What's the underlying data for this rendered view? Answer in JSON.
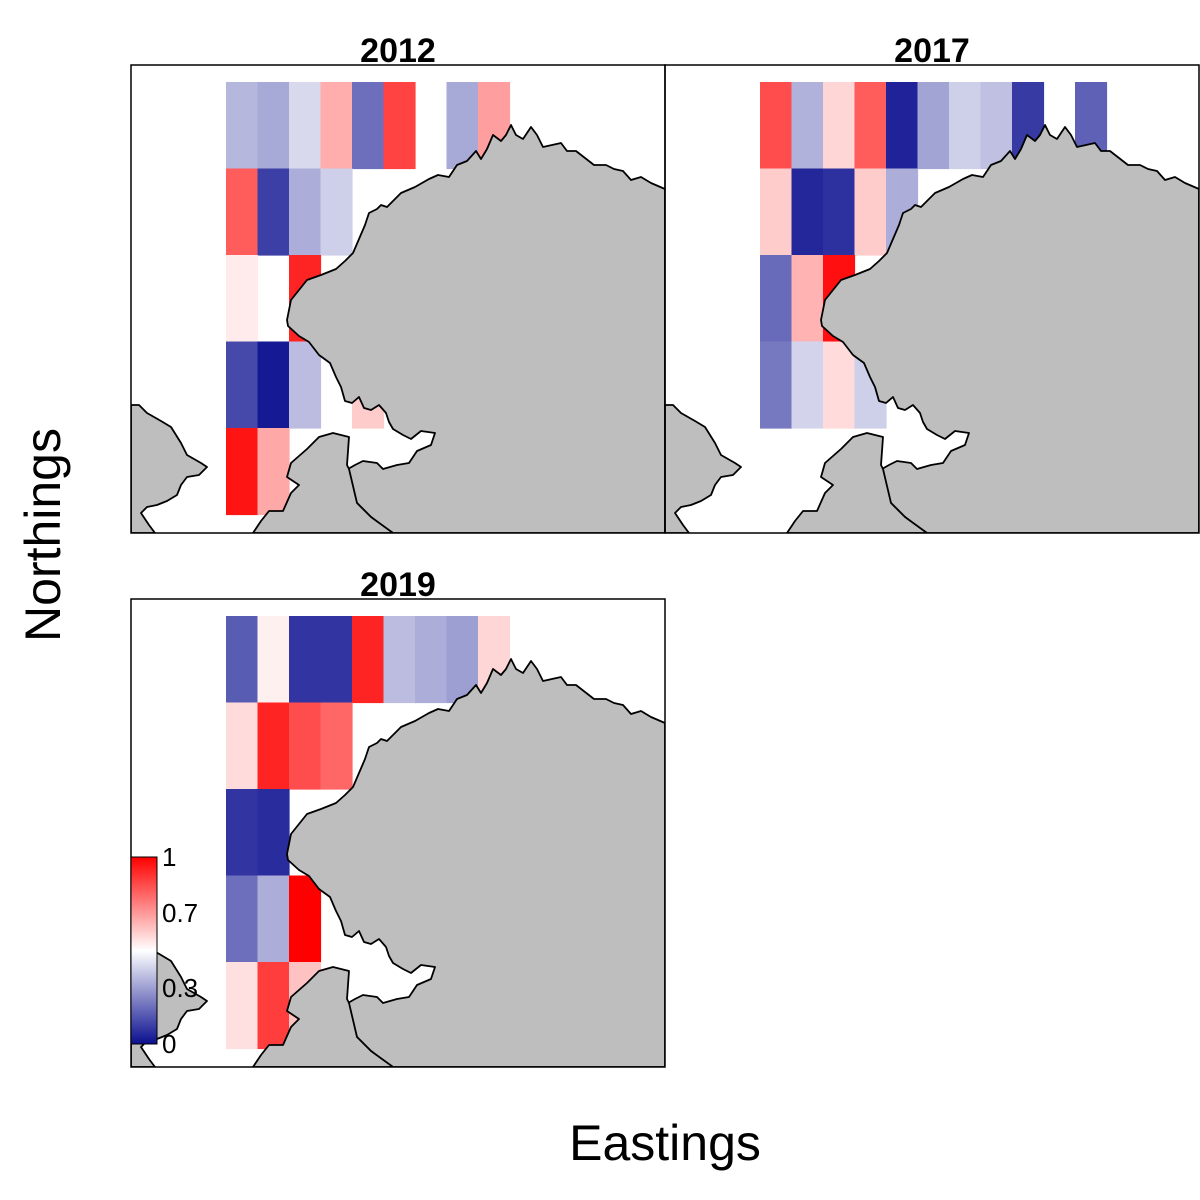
{
  "chart_data": {
    "type": "heatmap",
    "xlabel": "Eastings",
    "ylabel": "Northings",
    "legend": {
      "position": "bottom-left",
      "ticks": [
        "1",
        "0.7",
        "0.3",
        "0"
      ],
      "tick_values": [
        1,
        0.7,
        0.3,
        0
      ],
      "range": [
        0,
        1
      ],
      "colors": [
        "#0b0f8f",
        "#ffffff",
        "#ff0000"
      ]
    },
    "land_color": "#bebebe",
    "panels": [
      {
        "title": "2012",
        "cells": [
          {
            "col": 0,
            "row": 0,
            "value": 0.35
          },
          {
            "col": 1,
            "row": 0,
            "value": 0.32
          },
          {
            "col": 2,
            "row": 0,
            "value": 0.42
          },
          {
            "col": 3,
            "row": 0,
            "value": 0.66
          },
          {
            "col": 4,
            "row": 0,
            "value": 0.2
          },
          {
            "col": 5,
            "row": 0,
            "value": 0.87
          },
          {
            "col": 7,
            "row": 0,
            "value": 0.32
          },
          {
            "col": 8,
            "row": 0,
            "value": 0.69
          },
          {
            "col": 0,
            "row": 1,
            "value": 0.82
          },
          {
            "col": 1,
            "row": 1,
            "value": 0.1
          },
          {
            "col": 2,
            "row": 1,
            "value": 0.33
          },
          {
            "col": 3,
            "row": 1,
            "value": 0.4
          },
          {
            "col": 0,
            "row": 2,
            "value": 0.54
          },
          {
            "col": 2,
            "row": 2,
            "value": 0.93
          },
          {
            "col": 0,
            "row": 3,
            "value": 0.12
          },
          {
            "col": 1,
            "row": 3,
            "value": 0.02
          },
          {
            "col": 2,
            "row": 3,
            "value": 0.36
          },
          {
            "col": 4,
            "row": 3,
            "value": 0.6
          },
          {
            "col": 0,
            "row": 4,
            "value": 0.96
          },
          {
            "col": 1,
            "row": 4,
            "value": 0.67
          }
        ]
      },
      {
        "title": "2017",
        "cells": [
          {
            "col": 0,
            "row": 0,
            "value": 0.85
          },
          {
            "col": 1,
            "row": 0,
            "value": 0.34
          },
          {
            "col": 2,
            "row": 0,
            "value": 0.58
          },
          {
            "col": 3,
            "row": 0,
            "value": 0.82
          },
          {
            "col": 4,
            "row": 0,
            "value": 0.04
          },
          {
            "col": 5,
            "row": 0,
            "value": 0.31
          },
          {
            "col": 6,
            "row": 0,
            "value": 0.4
          },
          {
            "col": 7,
            "row": 0,
            "value": 0.37
          },
          {
            "col": 8,
            "row": 0,
            "value": 0.09
          },
          {
            "col": 10,
            "row": 0,
            "value": 0.17
          },
          {
            "col": 0,
            "row": 1,
            "value": 0.6
          },
          {
            "col": 1,
            "row": 1,
            "value": 0.05
          },
          {
            "col": 2,
            "row": 1,
            "value": 0.07
          },
          {
            "col": 3,
            "row": 1,
            "value": 0.6
          },
          {
            "col": 4,
            "row": 1,
            "value": 0.33
          },
          {
            "col": 0,
            "row": 2,
            "value": 0.19
          },
          {
            "col": 1,
            "row": 2,
            "value": 0.65
          },
          {
            "col": 2,
            "row": 2,
            "value": 0.97
          },
          {
            "col": 0,
            "row": 3,
            "value": 0.22
          },
          {
            "col": 1,
            "row": 3,
            "value": 0.41
          },
          {
            "col": 2,
            "row": 3,
            "value": 0.57
          },
          {
            "col": 3,
            "row": 3,
            "value": 0.4
          }
        ]
      },
      {
        "title": "2019",
        "cells": [
          {
            "col": 0,
            "row": 0,
            "value": 0.16
          },
          {
            "col": 1,
            "row": 0,
            "value": 0.53
          },
          {
            "col": 2,
            "row": 0,
            "value": 0.08
          },
          {
            "col": 3,
            "row": 0,
            "value": 0.08
          },
          {
            "col": 4,
            "row": 0,
            "value": 0.93
          },
          {
            "col": 5,
            "row": 0,
            "value": 0.36
          },
          {
            "col": 6,
            "row": 0,
            "value": 0.33
          },
          {
            "col": 7,
            "row": 0,
            "value": 0.3
          },
          {
            "col": 8,
            "row": 0,
            "value": 0.58
          },
          {
            "col": 0,
            "row": 1,
            "value": 0.57
          },
          {
            "col": 1,
            "row": 1,
            "value": 0.93
          },
          {
            "col": 2,
            "row": 1,
            "value": 0.85
          },
          {
            "col": 3,
            "row": 1,
            "value": 0.8
          },
          {
            "col": 0,
            "row": 2,
            "value": 0.08
          },
          {
            "col": 1,
            "row": 2,
            "value": 0.06
          },
          {
            "col": 0,
            "row": 3,
            "value": 0.2
          },
          {
            "col": 1,
            "row": 3,
            "value": 0.33
          },
          {
            "col": 2,
            "row": 3,
            "value": 1.0
          },
          {
            "col": 0,
            "row": 4,
            "value": 0.56
          },
          {
            "col": 1,
            "row": 4,
            "value": 0.88
          },
          {
            "col": 2,
            "row": 4,
            "value": 0.62
          }
        ]
      }
    ]
  }
}
